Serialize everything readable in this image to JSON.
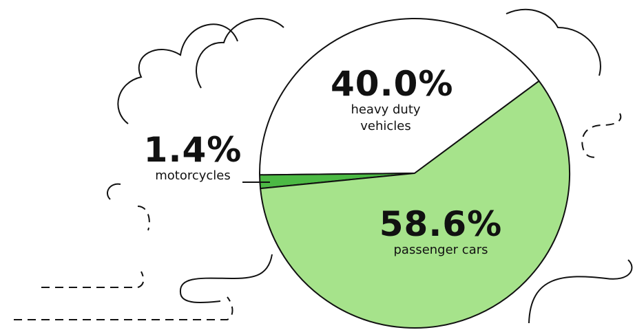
{
  "chart_data": {
    "type": "pie",
    "categories": [
      "heavy duty vehicles",
      "motorcycles",
      "passenger cars"
    ],
    "values": [
      40.0,
      1.4,
      58.6
    ],
    "value_labels": [
      "40.0%",
      "1.4%",
      "58.6%"
    ],
    "colors": [
      "#ffffff",
      "#4cb944",
      "#a6e38b"
    ]
  }
}
